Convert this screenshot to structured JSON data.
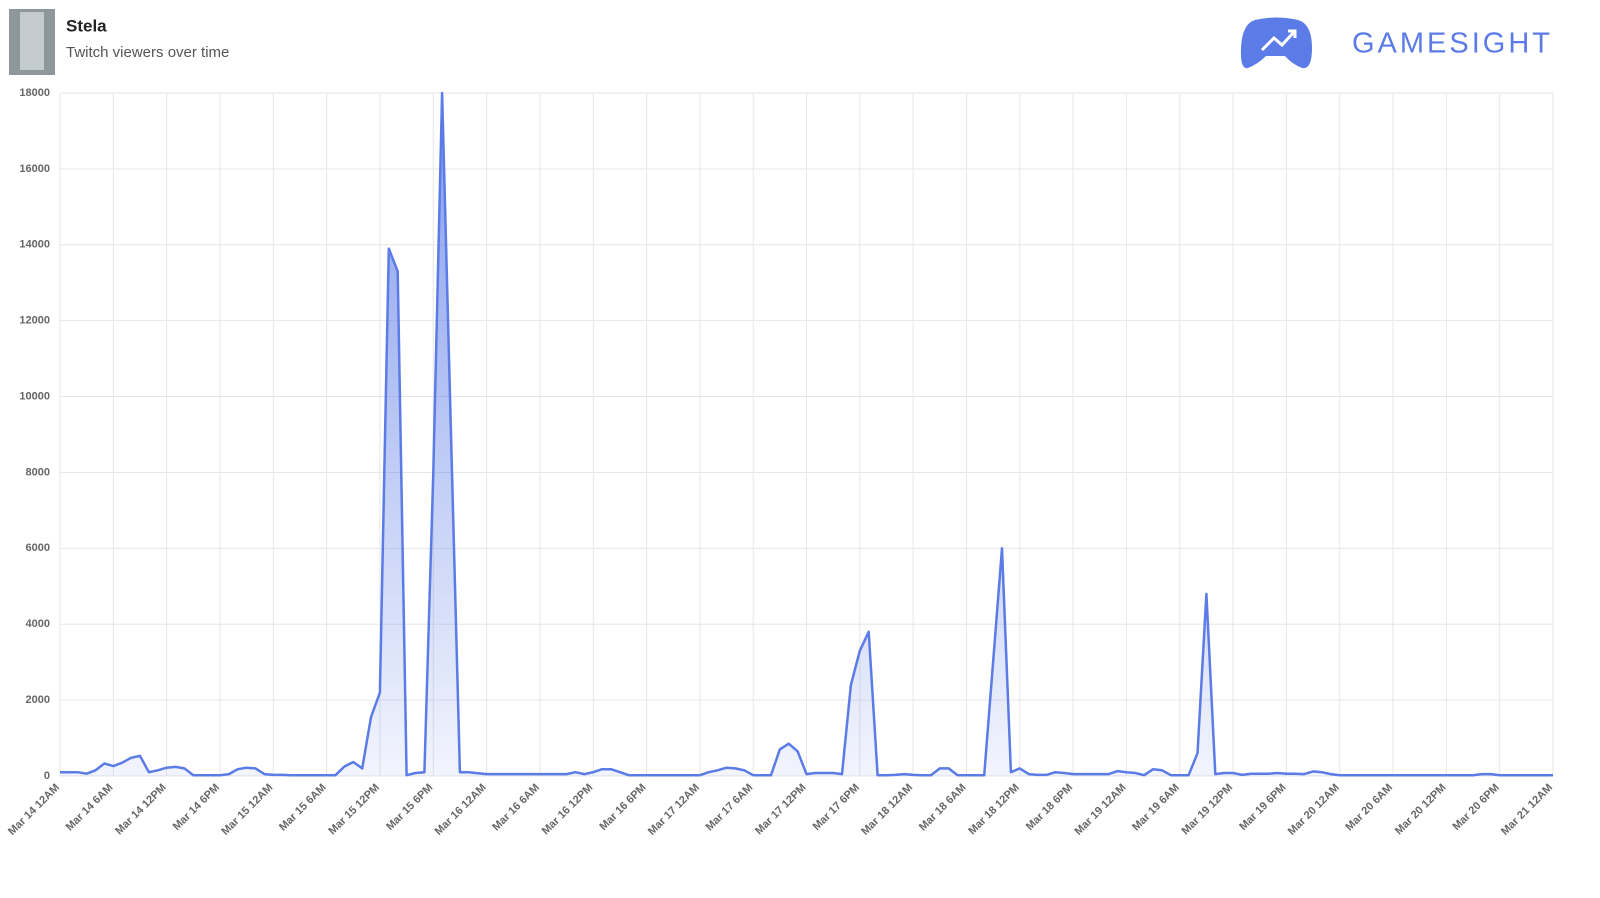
{
  "brand": "GAMESIGHT",
  "chart_data": {
    "type": "area",
    "title": "Stela",
    "subtitle": "Twitch viewers over time",
    "color": "#5b7be6",
    "grid": true,
    "categories": [
      "Mar 14 12AM",
      null,
      null,
      null,
      null,
      null,
      "Mar 14 6AM",
      null,
      null,
      null,
      null,
      null,
      "Mar 14 12PM",
      null,
      null,
      null,
      null,
      null,
      "Mar 14 6PM",
      null,
      null,
      null,
      null,
      null,
      "Mar 15 12AM",
      null,
      null,
      null,
      null,
      null,
      "Mar 15 6AM",
      null,
      null,
      null,
      null,
      null,
      "Mar 15 12PM",
      null,
      null,
      null,
      null,
      null,
      "Mar 15 6PM",
      null,
      null,
      null,
      null,
      null,
      "Mar 16 12AM",
      null,
      null,
      null,
      null,
      null,
      "Mar 16 6AM",
      null,
      null,
      null,
      null,
      null,
      "Mar 16 12PM",
      null,
      null,
      null,
      null,
      null,
      "Mar 16 6PM",
      null,
      null,
      null,
      null,
      null,
      "Mar 17 12AM",
      null,
      null,
      null,
      null,
      null,
      "Mar 17 6AM",
      null,
      null,
      null,
      null,
      null,
      "Mar 17 12PM",
      null,
      null,
      null,
      null,
      null,
      "Mar 17 6PM",
      null,
      null,
      null,
      null,
      null,
      "Mar 18 12AM",
      null,
      null,
      null,
      null,
      null,
      "Mar 18 6AM",
      null,
      null,
      null,
      null,
      null,
      "Mar 18 12PM",
      null,
      null,
      null,
      null,
      null,
      "Mar 18 6PM",
      null,
      null,
      null,
      null,
      null,
      "Mar 19 12AM",
      null,
      null,
      null,
      null,
      null,
      "Mar 19 6AM",
      null,
      null,
      null,
      null,
      null,
      "Mar 19 12PM",
      null,
      null,
      null,
      null,
      null,
      "Mar 19 6PM",
      null,
      null,
      null,
      null,
      null,
      "Mar 20 12AM",
      null,
      null,
      null,
      null,
      null,
      "Mar 20 6AM",
      null,
      null,
      null,
      null,
      null,
      "Mar 20 12PM",
      null,
      null,
      null,
      null,
      null,
      "Mar 20 6PM",
      null,
      null,
      null,
      null,
      null,
      "Mar 21 12AM"
    ],
    "values": [
      100,
      100,
      100,
      60,
      150,
      330,
      260,
      350,
      480,
      530,
      100,
      150,
      220,
      240,
      200,
      20,
      20,
      20,
      20,
      50,
      180,
      220,
      200,
      50,
      30,
      30,
      20,
      20,
      20,
      20,
      20,
      20,
      250,
      370,
      200,
      1550,
      2200,
      13900,
      13300,
      20,
      80,
      100,
      8000,
      18000,
      9000,
      100,
      100,
      70,
      50,
      50,
      50,
      50,
      50,
      50,
      50,
      50,
      50,
      50,
      100,
      50,
      100,
      180,
      180,
      100,
      20,
      20,
      20,
      20,
      20,
      20,
      20,
      20,
      20,
      100,
      150,
      220,
      200,
      150,
      20,
      20,
      20,
      700,
      850,
      650,
      50,
      80,
      80,
      80,
      50,
      2400,
      3300,
      3800,
      20,
      20,
      30,
      50,
      30,
      20,
      20,
      200,
      200,
      20,
      20,
      20,
      20,
      3000,
      6000,
      100,
      200,
      50,
      30,
      30,
      100,
      80,
      50,
      50,
      50,
      50,
      50,
      130,
      100,
      80,
      20,
      180,
      150,
      20,
      20,
      20,
      600,
      4800,
      50,
      80,
      80,
      30,
      60,
      60,
      60,
      80,
      60,
      60,
      50,
      120,
      100,
      50,
      20,
      20,
      20,
      20,
      20,
      20,
      20,
      20,
      20,
      20,
      20,
      20,
      20,
      20,
      20,
      20,
      50,
      50,
      20,
      20,
      20,
      20,
      20,
      20,
      20
    ],
    "ylim": [
      0,
      18000
    ],
    "yticks": [
      0,
      2000,
      4000,
      6000,
      8000,
      10000,
      12000,
      14000,
      16000,
      18000
    ]
  }
}
